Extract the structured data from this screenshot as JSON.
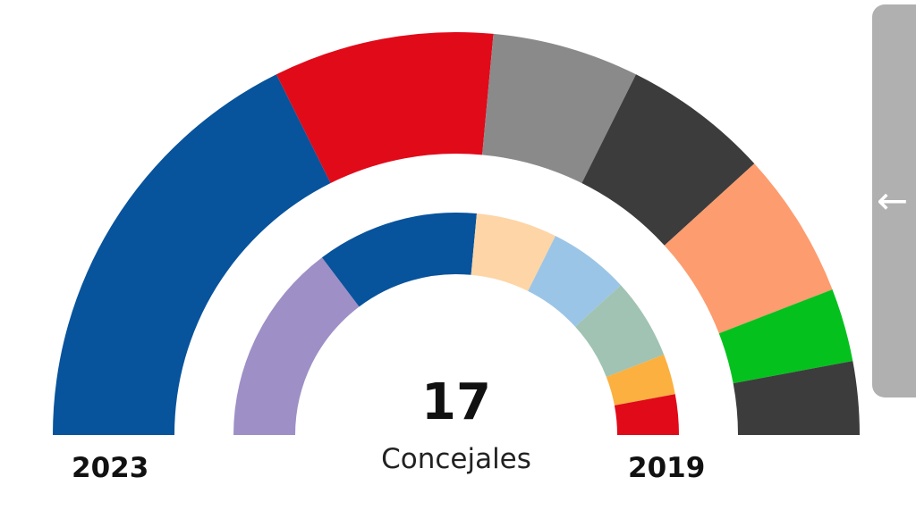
{
  "chart_data": {
    "type": "pie",
    "subtype": "semicircle-parliament",
    "total": "17",
    "unit_label": "Concejales",
    "series": [
      {
        "name": "2023",
        "seats": [
          6,
          3,
          2,
          2,
          2,
          1,
          1
        ],
        "colors": [
          "#07539c",
          "#e10a19",
          "#8a8a8a",
          "#3c3c3c",
          "#fd9c6f",
          "#05c11d",
          "#3c3c3c"
        ]
      },
      {
        "name": "2019",
        "seats": [
          5,
          4,
          2,
          2,
          2,
          1,
          1
        ],
        "colors": [
          "#9e8fc6",
          "#07539c",
          "#fdd5a6",
          "#9bc5e6",
          "#a0c3b3",
          "#fbb040",
          "#e10a19"
        ]
      }
    ]
  },
  "nav": {
    "back_icon": "arrow-left-icon",
    "back_glyph": "←"
  }
}
